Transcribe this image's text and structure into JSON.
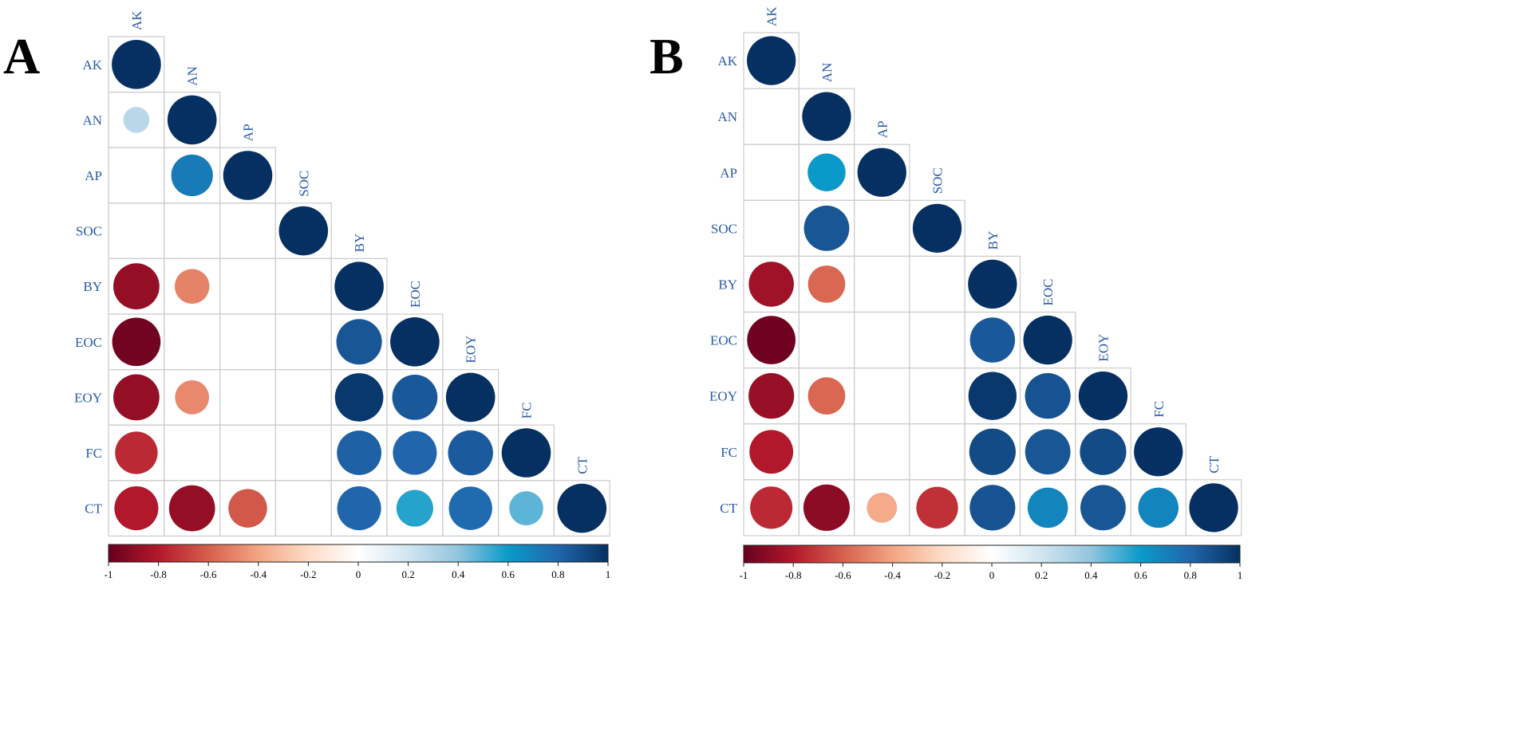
{
  "chart_data": [
    {
      "type": "heatmap",
      "panel": "A",
      "variables": [
        "AK",
        "AN",
        "AP",
        "SOC",
        "BY",
        "EOC",
        "EOY",
        "FC",
        "CT"
      ],
      "matrix": [
        [
          1,
          null,
          null,
          null,
          null,
          null,
          null,
          null,
          null
        ],
        [
          0.28,
          1,
          null,
          null,
          null,
          null,
          null,
          null,
          null
        ],
        [
          null,
          0.72,
          1,
          null,
          null,
          null,
          null,
          null,
          null
        ],
        [
          null,
          null,
          null,
          1,
          null,
          null,
          null,
          null,
          null
        ],
        [
          -0.88,
          -0.5,
          null,
          null,
          1,
          null,
          null,
          null,
          null
        ],
        [
          -0.97,
          null,
          null,
          null,
          0.86,
          1,
          null,
          null,
          null
        ],
        [
          -0.88,
          -0.48,
          null,
          null,
          0.97,
          0.85,
          1,
          null,
          null
        ],
        [
          -0.75,
          null,
          null,
          null,
          0.82,
          0.8,
          0.84,
          1,
          null
        ],
        [
          -0.8,
          -0.88,
          -0.62,
          null,
          0.8,
          0.56,
          0.78,
          0.48,
          1
        ]
      ],
      "colorbar": {
        "ticks": [
          "-1",
          "-0.8",
          "-0.6",
          "-0.4",
          "-0.2",
          "0",
          "0.2",
          "0.4",
          "0.6",
          "0.8",
          "1"
        ],
        "range": [
          -1,
          1
        ]
      }
    },
    {
      "type": "heatmap",
      "panel": "B",
      "variables": [
        "AK",
        "AN",
        "AP",
        "SOC",
        "BY",
        "EOC",
        "EOY",
        "FC",
        "CT"
      ],
      "matrix": [
        [
          1,
          null,
          null,
          null,
          null,
          null,
          null,
          null,
          null
        ],
        [
          null,
          1,
          null,
          null,
          null,
          null,
          null,
          null,
          null
        ],
        [
          null,
          0.6,
          1,
          null,
          null,
          null,
          null,
          null,
          null
        ],
        [
          null,
          0.86,
          null,
          1,
          null,
          null,
          null,
          null,
          null
        ],
        [
          -0.85,
          -0.58,
          null,
          null,
          1,
          null,
          null,
          null,
          null
        ],
        [
          -0.98,
          null,
          null,
          null,
          0.85,
          1,
          null,
          null,
          null
        ],
        [
          -0.87,
          -0.58,
          null,
          null,
          0.97,
          0.87,
          1,
          null,
          null
        ],
        [
          -0.8,
          null,
          null,
          null,
          0.9,
          0.86,
          0.9,
          1,
          null
        ],
        [
          -0.75,
          -0.9,
          -0.38,
          -0.73,
          0.87,
          0.68,
          0.86,
          0.68,
          1
        ]
      ],
      "colorbar": {
        "ticks": [
          "-1",
          "-0.8",
          "-0.6",
          "-0.4",
          "-0.2",
          "0",
          "0.2",
          "0.4",
          "0.6",
          "0.8",
          "1"
        ],
        "range": [
          -1,
          1
        ]
      }
    }
  ],
  "colors": {
    "label": "#2a5aa6",
    "grid": "#cccccc",
    "colorbar_stops": [
      "#67001f",
      "#b2182b",
      "#d6604d",
      "#f4a582",
      "#fddbc7",
      "#ffffff",
      "#d1e5f0",
      "#92c5de",
      "#0a9ac9",
      "#2166ac",
      "#053061"
    ]
  }
}
